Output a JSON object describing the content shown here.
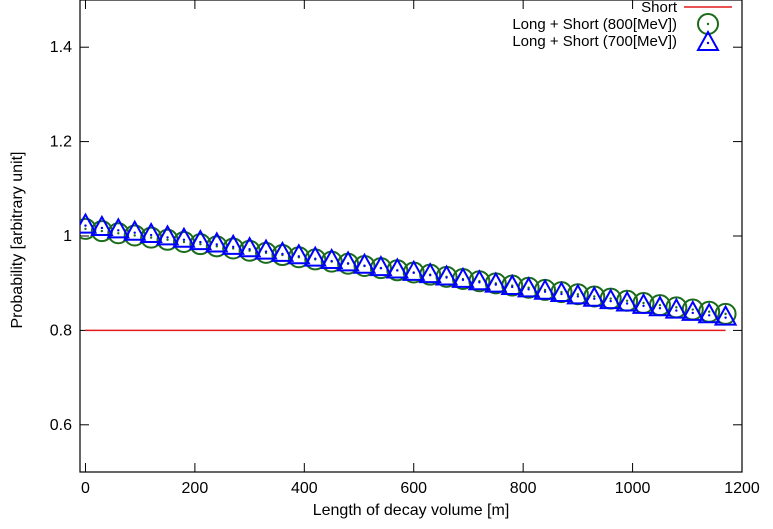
{
  "chart_data": {
    "type": "scatter",
    "title": "",
    "xlabel": "Length of decay volume [m]",
    "ylabel": "Probability [arbitrary unit]",
    "xlim": [
      -10,
      1200
    ],
    "ylim": [
      0.5,
      1.5
    ],
    "xticks": [
      0,
      200,
      400,
      600,
      800,
      1000,
      1200
    ],
    "xtick_labels": [
      "0",
      "200",
      "400",
      "600",
      "800",
      "1000",
      "1200"
    ],
    "yticks": [
      0.6,
      0.8,
      1.0,
      1.2,
      1.4
    ],
    "ytick_labels": [
      "0.6",
      "0.8",
      "1",
      "1.2",
      "1.4"
    ],
    "grid": false,
    "legend_position": "top-right",
    "series": [
      {
        "name": "Short",
        "style": "line",
        "color": "#e41a1c",
        "x": [
          0,
          1170
        ],
        "y": [
          0.8,
          0.8
        ]
      },
      {
        "name": "Long + Short (800[MeV])",
        "style": "circle",
        "color": "#1a6b1a",
        "x_start": 0,
        "x_step": 30,
        "count": 40,
        "y_start": 1.015,
        "y_end": 0.835
      },
      {
        "name": "Long + Short (700[MeV])",
        "style": "triangle",
        "color": "#0000ff",
        "x_start": 0,
        "x_step": 30,
        "count": 40,
        "y_start": 1.022,
        "y_end": 0.827
      }
    ]
  }
}
